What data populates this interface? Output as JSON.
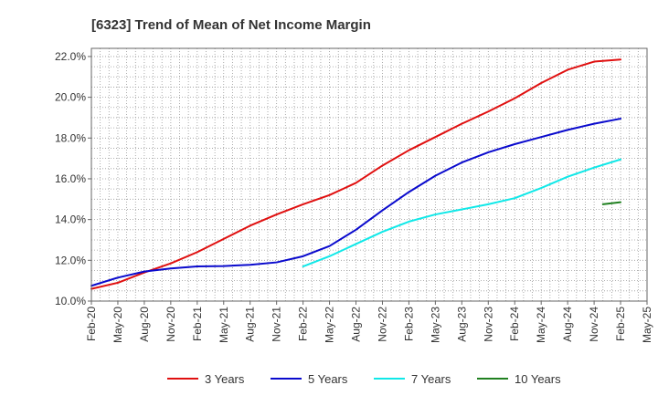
{
  "chart_data": {
    "type": "line",
    "title": "[6323]  Trend of Mean of Net Income Margin",
    "xlabel": "",
    "ylabel": "",
    "x_tick_labels": [
      "Feb-20",
      "May-20",
      "Aug-20",
      "Nov-20",
      "Feb-21",
      "May-21",
      "Aug-21",
      "Nov-21",
      "Feb-22",
      "May-22",
      "Aug-22",
      "Nov-22",
      "Feb-23",
      "May-23",
      "Aug-23",
      "Nov-23",
      "Feb-24",
      "May-24",
      "Aug-24",
      "Nov-24",
      "Feb-25",
      "May-25"
    ],
    "y_tick_labels": [
      "10.0%",
      "12.0%",
      "14.0%",
      "16.0%",
      "18.0%",
      "20.0%",
      "22.0%"
    ],
    "ylim": [
      10.0,
      22.4
    ],
    "grid": true,
    "legend_position": "bottom",
    "series": [
      {
        "name": "3 Years",
        "color": "#e01010",
        "values": [
          [
            "Feb-20",
            10.6
          ],
          [
            "May-20",
            10.9
          ],
          [
            "Aug-20",
            11.4
          ],
          [
            "Nov-20",
            11.85
          ],
          [
            "Feb-21",
            12.4
          ],
          [
            "May-21",
            13.05
          ],
          [
            "Aug-21",
            13.7
          ],
          [
            "Nov-21",
            14.25
          ],
          [
            "Feb-22",
            14.75
          ],
          [
            "May-22",
            15.2
          ],
          [
            "Aug-22",
            15.8
          ],
          [
            "Nov-22",
            16.65
          ],
          [
            "Feb-23",
            17.4
          ],
          [
            "May-23",
            18.05
          ],
          [
            "Aug-23",
            18.7
          ],
          [
            "Nov-23",
            19.3
          ],
          [
            "Feb-24",
            19.95
          ],
          [
            "May-24",
            20.7
          ],
          [
            "Aug-24",
            21.35
          ],
          [
            "Nov-24",
            21.75
          ],
          [
            "Feb-25",
            21.85
          ]
        ]
      },
      {
        "name": "5 Years",
        "color": "#0a0acd",
        "values": [
          [
            "Feb-20",
            10.75
          ],
          [
            "May-20",
            11.15
          ],
          [
            "Aug-20",
            11.45
          ],
          [
            "Nov-20",
            11.6
          ],
          [
            "Feb-21",
            11.7
          ],
          [
            "May-21",
            11.72
          ],
          [
            "Aug-21",
            11.78
          ],
          [
            "Nov-21",
            11.9
          ],
          [
            "Feb-22",
            12.2
          ],
          [
            "May-22",
            12.7
          ],
          [
            "Aug-22",
            13.5
          ],
          [
            "Nov-22",
            14.45
          ],
          [
            "Feb-23",
            15.35
          ],
          [
            "May-23",
            16.15
          ],
          [
            "Aug-23",
            16.8
          ],
          [
            "Nov-23",
            17.3
          ],
          [
            "Feb-24",
            17.7
          ],
          [
            "May-24",
            18.05
          ],
          [
            "Aug-24",
            18.4
          ],
          [
            "Nov-24",
            18.7
          ],
          [
            "Feb-25",
            18.95
          ]
        ]
      },
      {
        "name": "7 Years",
        "color": "#10e8e8",
        "values": [
          [
            "Feb-22",
            11.7
          ],
          [
            "May-22",
            12.2
          ],
          [
            "Aug-22",
            12.8
          ],
          [
            "Nov-22",
            13.4
          ],
          [
            "Feb-23",
            13.9
          ],
          [
            "May-23",
            14.25
          ],
          [
            "Aug-23",
            14.5
          ],
          [
            "Nov-23",
            14.75
          ],
          [
            "Feb-24",
            15.05
          ],
          [
            "May-24",
            15.55
          ],
          [
            "Aug-24",
            16.1
          ],
          [
            "Nov-24",
            16.55
          ],
          [
            "Feb-25",
            16.95
          ]
        ]
      },
      {
        "name": "10 Years",
        "color": "#208020",
        "values": [
          [
            "Dec-24",
            14.75
          ],
          [
            "Feb-25",
            14.85
          ]
        ]
      }
    ]
  }
}
